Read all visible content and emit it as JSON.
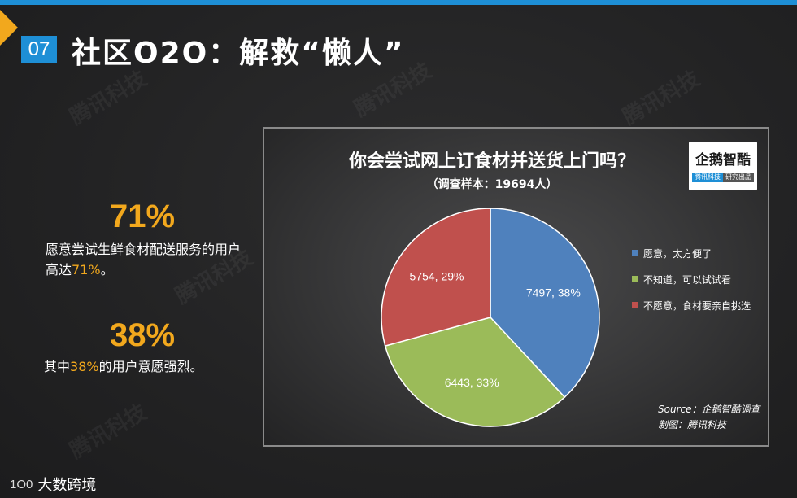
{
  "header": {
    "section_number": "07",
    "title": "社区O2O：解救“懒人”"
  },
  "stats": [
    {
      "big": "71%",
      "text_before": "愿意尝试生鲜食材配送服务的用户高达",
      "highlight": "71%",
      "text_after": "。"
    },
    {
      "big": "38%",
      "text_before": "其中",
      "highlight": "38%",
      "text_after": "的用户意愿强烈。"
    }
  ],
  "chart_logo": {
    "main": "企鹅智酷",
    "sub_left": "腾讯科技",
    "sub_right": "研究出品"
  },
  "chart_data": {
    "type": "pie",
    "title": "你会尝试网上订食材并送货上门吗？",
    "subtitle": "（调查样本：19694人）",
    "slices": [
      {
        "name": "愿意，太方便了",
        "value": 7497,
        "percent": 38,
        "label": "7497, 38%",
        "color": "#4f81bd"
      },
      {
        "name": "不知道，可以试试看",
        "value": 6443,
        "percent": 33,
        "label": "6443, 33%",
        "color": "#9bbb59"
      },
      {
        "name": "不愿意，食材要亲自挑选",
        "value": 5754,
        "percent": 29,
        "label": "5754, 29%",
        "color": "#c0504d"
      }
    ],
    "legend_position": "right"
  },
  "source": {
    "line1": "Source：企鹅智酷调查",
    "line2": "制图：腾讯科技"
  },
  "footer": {
    "mark": "1O0",
    "brand": "大数跨境"
  },
  "watermark_text": "腾讯科技"
}
